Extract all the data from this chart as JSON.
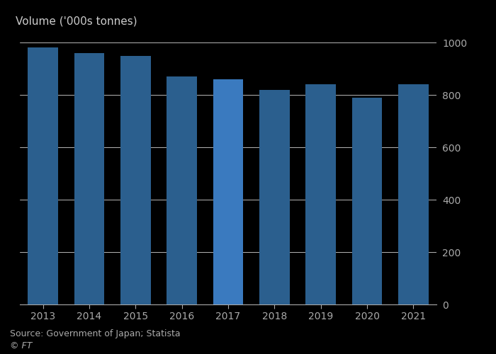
{
  "years": [
    "2013",
    "2014",
    "2015",
    "2016",
    "2017",
    "2018",
    "2019",
    "2020",
    "2021"
  ],
  "values": [
    980,
    960,
    950,
    870,
    860,
    820,
    840,
    790,
    840
  ],
  "bar_color": "#2b5f8e",
  "highlight_color": "#3a7abf",
  "highlight_index": 4,
  "ylabel": "Volume ('000s tonnes)",
  "ylim": [
    0,
    1000
  ],
  "yticks": [
    0,
    200,
    400,
    600,
    800,
    1000
  ],
  "source": "Source: Government of Japan; Statista",
  "ft_label": "© FT",
  "background_color": "#000000",
  "grid_color": "#ffffff",
  "plot_bg_color": "#000000",
  "axis_label_color": "#aaaaaa",
  "title_color": "#cccccc",
  "title_fontsize": 11,
  "tick_fontsize": 10,
  "source_fontsize": 9
}
